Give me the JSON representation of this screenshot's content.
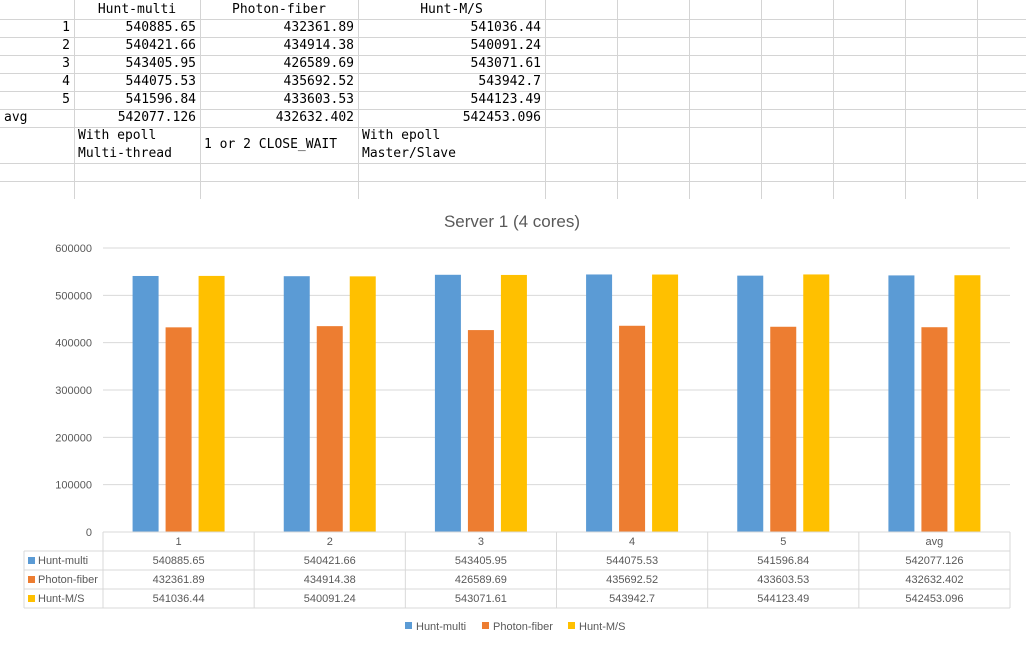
{
  "sheet": {
    "headers": [
      "Hunt-multi",
      "Photon-fiber",
      "Hunt-M/S"
    ],
    "rows": [
      {
        "label": "1",
        "values": [
          "540885.65",
          "432361.89",
          "541036.44"
        ]
      },
      {
        "label": "2",
        "values": [
          "540421.66",
          "434914.38",
          "540091.24"
        ]
      },
      {
        "label": "3",
        "values": [
          "543405.95",
          "426589.69",
          "543071.61"
        ]
      },
      {
        "label": "4",
        "values": [
          "544075.53",
          "435692.52",
          "543942.7"
        ]
      },
      {
        "label": "5",
        "values": [
          "541596.84",
          "433603.53",
          "544123.49"
        ]
      },
      {
        "label": "avg",
        "values": [
          "542077.126",
          "432632.402",
          "542453.096"
        ]
      }
    ],
    "notes": [
      "With epoll\nMulti-thread",
      "1 or 2 CLOSE_WAIT",
      "With epoll\nMaster/Slave"
    ]
  },
  "chart_data": {
    "type": "bar",
    "title": "Server 1 (4 cores)",
    "categories": [
      "1",
      "2",
      "3",
      "4",
      "5",
      "avg"
    ],
    "series": [
      {
        "name": "Hunt-multi",
        "color": "#5b9bd5",
        "values": [
          540885.65,
          540421.66,
          543405.95,
          544075.53,
          541596.84,
          542077.126
        ],
        "labels": [
          "540885.65",
          "540421.66",
          "543405.95",
          "544075.53",
          "541596.84",
          "542077.126"
        ]
      },
      {
        "name": "Photon-fiber",
        "color": "#ed7d31",
        "values": [
          432361.89,
          434914.38,
          426589.69,
          435692.52,
          433603.53,
          432632.402
        ],
        "labels": [
          "432361.89",
          "434914.38",
          "426589.69",
          "435692.52",
          "433603.53",
          "432632.402"
        ]
      },
      {
        "name": "Hunt-M/S",
        "color": "#ffc000",
        "values": [
          541036.44,
          540091.24,
          543071.61,
          543942.7,
          544123.49,
          542453.096
        ],
        "labels": [
          "541036.44",
          "540091.24",
          "543071.61",
          "543942.7",
          "544123.49",
          "542453.096"
        ]
      }
    ],
    "ylim": [
      0,
      600000
    ],
    "yticks": [
      "0",
      "100000",
      "200000",
      "300000",
      "400000",
      "500000",
      "600000"
    ],
    "grid": true,
    "legend": "bottom",
    "data_table": true
  }
}
